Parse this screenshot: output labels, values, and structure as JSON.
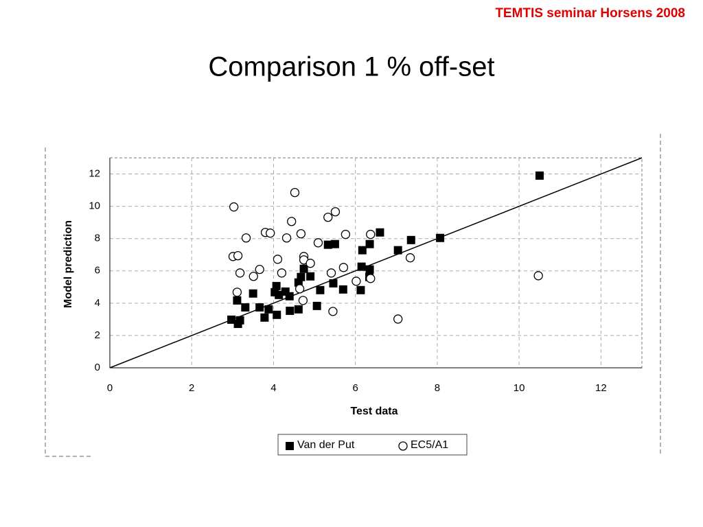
{
  "header": "TEMTIS seminar Horsens 2008",
  "chart_data": {
    "type": "scatter",
    "title": "Comparison  1 % off-set",
    "x_label": "Test data",
    "y_label": "Model prediction",
    "xlim": [
      0,
      13
    ],
    "ylim": [
      0,
      13
    ],
    "xticks": [
      0,
      2,
      4,
      6,
      8,
      10,
      12
    ],
    "yticks": [
      0,
      2,
      4,
      6,
      8,
      10,
      12
    ],
    "grid": true,
    "legend": "bottom",
    "reference_line": "y=x",
    "series": [
      {
        "name": "Van der Put",
        "color": "#000000",
        "marker": "square",
        "x": [
          10.5,
          8.07,
          7.36,
          7.04,
          6.6,
          6.35,
          6.17,
          5.5,
          5.33,
          6.15,
          6.35,
          6.34,
          6.13,
          5.7,
          5.46,
          5.14,
          5.06,
          4.9,
          4.74,
          4.67,
          4.61,
          4.61,
          4.4,
          4.39,
          4.29,
          4.13,
          4.07,
          4.03,
          4.08,
          3.78,
          3.88,
          3.66,
          3.5,
          3.31,
          3.11,
          3.13,
          3.18,
          2.97
        ],
        "values": [
          11.9,
          8.04,
          7.91,
          7.28,
          8.38,
          7.66,
          7.28,
          7.66,
          7.62,
          6.26,
          6.09,
          5.62,
          4.81,
          4.85,
          5.23,
          4.81,
          3.83,
          5.66,
          6.13,
          5.62,
          5.28,
          3.62,
          3.53,
          4.43,
          4.72,
          4.51,
          5.06,
          4.68,
          3.28,
          3.11,
          3.62,
          3.74,
          4.6,
          3.74,
          4.17,
          2.72,
          2.94,
          2.98
        ]
      },
      {
        "name": "EC5/A1",
        "color": "#000000",
        "marker": "circle",
        "x": [
          3.03,
          4.52,
          5.51,
          5.33,
          3.33,
          3.8,
          3.92,
          4.44,
          4.32,
          4.67,
          5.76,
          6.37,
          5.09,
          3.01,
          3.13,
          4.1,
          4.74,
          4.74,
          4.9,
          3.66,
          3.18,
          3.51,
          4.2,
          5.71,
          5.41,
          6.02,
          6.37,
          3.11,
          4.64,
          4.72,
          5.45,
          7.04,
          7.34,
          10.47
        ],
        "values": [
          9.96,
          10.85,
          9.66,
          9.32,
          8.04,
          8.38,
          8.34,
          9.06,
          8.04,
          8.3,
          8.26,
          8.26,
          7.74,
          6.89,
          6.94,
          6.72,
          6.89,
          6.68,
          6.47,
          6.09,
          5.87,
          5.66,
          5.87,
          6.21,
          5.87,
          5.36,
          5.53,
          4.68,
          4.89,
          4.17,
          3.49,
          3.02,
          6.81,
          5.7
        ]
      }
    ]
  }
}
